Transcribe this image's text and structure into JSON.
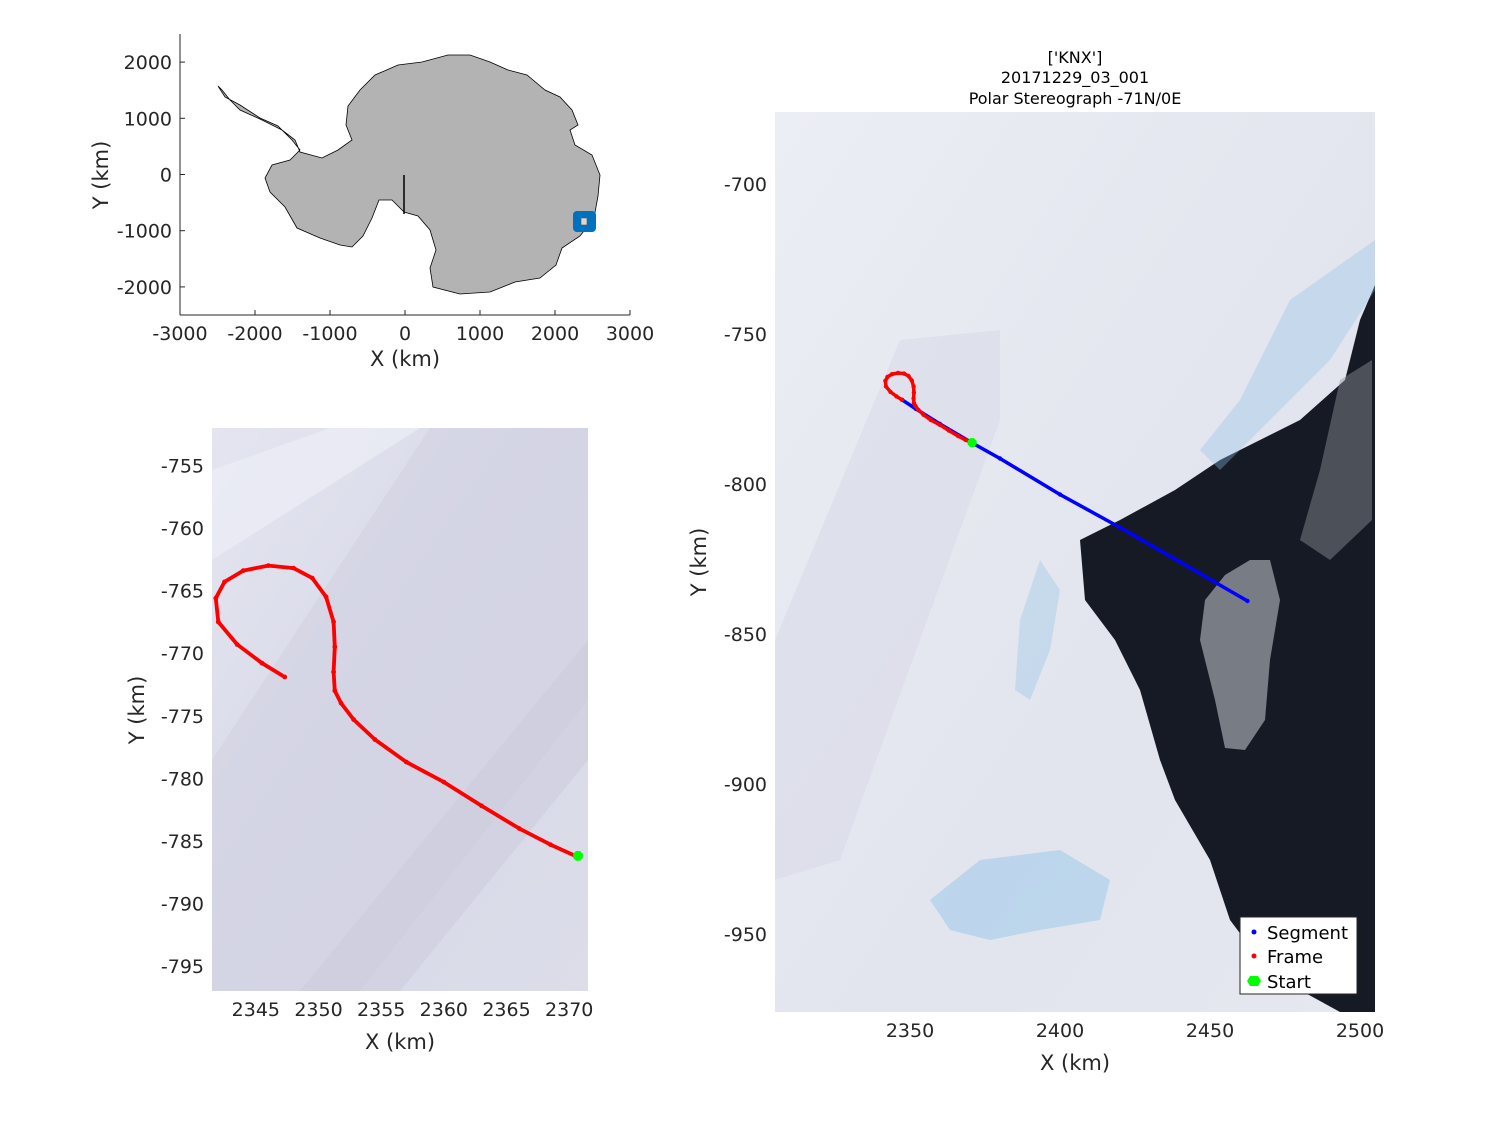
{
  "colors": {
    "land": "#b3b3b3",
    "ice_bg": "#dfe0ee",
    "ice_light": "#eef0f6",
    "ocean": "#151a24",
    "blue_ice": "#8ec4e8",
    "segment": "#0000ff",
    "frame": "#ff0000",
    "start": "#00ff00",
    "marker_box": "#0072bd"
  },
  "overview": {
    "xlabel": "X (km)",
    "ylabel": "Y (km)",
    "xlim": [
      -3000,
      3000
    ],
    "ylim": [
      -2500,
      2500
    ],
    "xticks": [
      "-3000",
      "-2000",
      "-1000",
      "0",
      "1000",
      "2000",
      "3000"
    ],
    "yticks": [
      "2000",
      "1000",
      "0",
      "-1000",
      "-2000"
    ]
  },
  "zoom": {
    "xlabel": "X (km)",
    "ylabel": "Y (km)",
    "xticks": [
      "2345",
      "2350",
      "2355",
      "2360",
      "2365",
      "2370"
    ],
    "yticks": [
      "-755",
      "-760",
      "-765",
      "-770",
      "-775",
      "-780",
      "-785",
      "-790",
      "-795"
    ]
  },
  "main": {
    "title_lines": [
      "['KNX']",
      "20171229_03_001",
      "Polar Stereograph -71N/0E"
    ],
    "xlabel": "X (km)",
    "ylabel": "Y (km)",
    "xticks": [
      "2350",
      "2400",
      "2450",
      "2500"
    ],
    "yticks": [
      "-700",
      "-750",
      "-800",
      "-850",
      "-900",
      "-950"
    ]
  },
  "legend": {
    "position": "bottom-right",
    "items": [
      "Segment",
      "Frame",
      "Start"
    ]
  },
  "chart_data": [
    {
      "type": "scatter",
      "panel": "overview",
      "xlabel": "X (km)",
      "ylabel": "Y (km)",
      "xlim": [
        -3000,
        3000
      ],
      "ylim": [
        -2500,
        2500
      ],
      "x": [
        2380
      ],
      "y": [
        -800
      ]
    },
    {
      "type": "line",
      "panel": "zoom",
      "xlabel": "X (km)",
      "ylabel": "Y (km)",
      "xlim": [
        2341.5,
        2371.5
      ],
      "ylim": [
        -797,
        -752
      ],
      "series": [
        {
          "name": "Frame",
          "x": [
            2347.3,
            2345.5,
            2343.5,
            2342.0,
            2341.8,
            2342.5,
            2344.0,
            2346.0,
            2348.0,
            2349.5,
            2350.6,
            2351.2,
            2351.3,
            2351.2,
            2351.3,
            2351.8,
            2352.8,
            2354.5,
            2357.0,
            2360.0,
            2363.0,
            2366.0,
            2368.5,
            2370.7
          ],
          "y": [
            -771.9,
            -770.8,
            -769.3,
            -767.5,
            -765.6,
            -764.3,
            -763.4,
            -763.0,
            -763.2,
            -764.0,
            -765.5,
            -767.5,
            -769.5,
            -771.5,
            -773.0,
            -774.0,
            -775.3,
            -776.9,
            -778.7,
            -780.3,
            -782.2,
            -784.0,
            -785.3,
            -786.3
          ]
        },
        {
          "name": "Start",
          "x": [
            2370.7
          ],
          "y": [
            -786.2
          ]
        }
      ]
    },
    {
      "type": "line",
      "panel": "main",
      "xlabel": "X (km)",
      "ylabel": "Y (km)",
      "xlim": [
        2305,
        2505
      ],
      "ylim": [
        -976,
        -676
      ],
      "series": [
        {
          "name": "Segment",
          "x": [
            2347.3,
            2352.0,
            2360.0,
            2370.7,
            2380.0,
            2400.0,
            2420.0,
            2440.0,
            2462.5
          ],
          "y": [
            -771.9,
            -775.0,
            -780.0,
            -786.3,
            -791.5,
            -803.5,
            -814.5,
            -826.0,
            -839.0
          ]
        },
        {
          "name": "Frame",
          "x": [
            2347.3,
            2345.5,
            2343.5,
            2342.0,
            2341.8,
            2342.5,
            2344.0,
            2346.0,
            2348.0,
            2349.5,
            2350.6,
            2351.2,
            2351.3,
            2351.2,
            2351.3,
            2351.8,
            2352.8,
            2354.5,
            2357.0,
            2360.0,
            2363.0,
            2366.0,
            2368.5,
            2370.7
          ],
          "y": [
            -771.9,
            -770.8,
            -769.3,
            -767.5,
            -765.6,
            -764.3,
            -763.4,
            -763.0,
            -763.2,
            -764.0,
            -765.5,
            -767.5,
            -769.5,
            -771.5,
            -773.0,
            -774.0,
            -775.3,
            -776.9,
            -778.7,
            -780.3,
            -782.2,
            -784.0,
            -785.3,
            -786.3
          ]
        },
        {
          "name": "Start",
          "x": [
            2370.7
          ],
          "y": [
            -786.2
          ]
        }
      ]
    }
  ]
}
